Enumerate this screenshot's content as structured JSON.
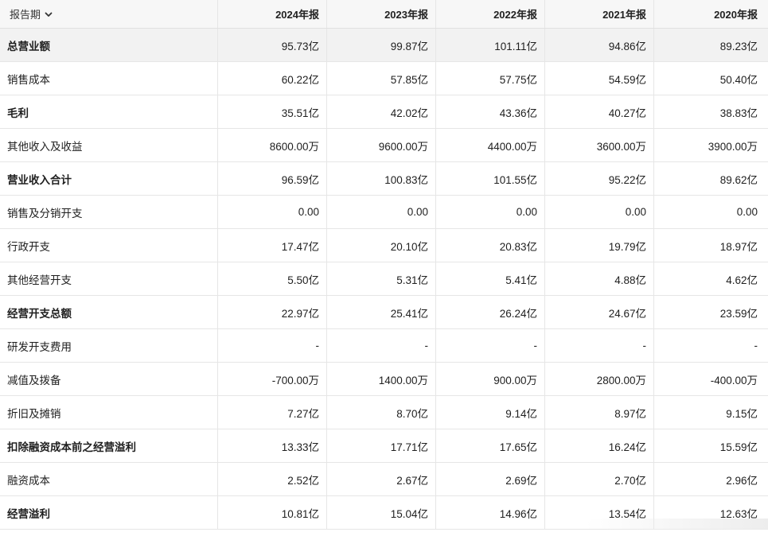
{
  "header": {
    "period_label": "报告期",
    "years": [
      "2024年报",
      "2023年报",
      "2022年报",
      "2021年报",
      "2020年报"
    ]
  },
  "rows": [
    {
      "label": "总营业额",
      "bold": true,
      "values": [
        "95.73亿",
        "99.87亿",
        "101.11亿",
        "94.86亿",
        "89.23亿"
      ]
    },
    {
      "label": "销售成本",
      "bold": false,
      "values": [
        "60.22亿",
        "57.85亿",
        "57.75亿",
        "54.59亿",
        "50.40亿"
      ]
    },
    {
      "label": "毛利",
      "bold": true,
      "values": [
        "35.51亿",
        "42.02亿",
        "43.36亿",
        "40.27亿",
        "38.83亿"
      ]
    },
    {
      "label": "其他收入及收益",
      "bold": false,
      "values": [
        "8600.00万",
        "9600.00万",
        "4400.00万",
        "3600.00万",
        "3900.00万"
      ]
    },
    {
      "label": "营业收入合计",
      "bold": true,
      "values": [
        "96.59亿",
        "100.83亿",
        "101.55亿",
        "95.22亿",
        "89.62亿"
      ]
    },
    {
      "label": "销售及分销开支",
      "bold": false,
      "values": [
        "0.00",
        "0.00",
        "0.00",
        "0.00",
        "0.00"
      ]
    },
    {
      "label": "行政开支",
      "bold": false,
      "values": [
        "17.47亿",
        "20.10亿",
        "20.83亿",
        "19.79亿",
        "18.97亿"
      ]
    },
    {
      "label": "其他经营开支",
      "bold": false,
      "values": [
        "5.50亿",
        "5.31亿",
        "5.41亿",
        "4.88亿",
        "4.62亿"
      ]
    },
    {
      "label": "经营开支总额",
      "bold": true,
      "values": [
        "22.97亿",
        "25.41亿",
        "26.24亿",
        "24.67亿",
        "23.59亿"
      ]
    },
    {
      "label": "研发开支费用",
      "bold": false,
      "values": [
        "-",
        "-",
        "-",
        "-",
        "-"
      ]
    },
    {
      "label": "减值及拨备",
      "bold": false,
      "values": [
        "-700.00万",
        "1400.00万",
        "900.00万",
        "2800.00万",
        "-400.00万"
      ]
    },
    {
      "label": "折旧及摊销",
      "bold": false,
      "values": [
        "7.27亿",
        "8.70亿",
        "9.14亿",
        "8.97亿",
        "9.15亿"
      ]
    },
    {
      "label": "扣除融资成本前之经营溢利",
      "bold": true,
      "values": [
        "13.33亿",
        "17.71亿",
        "17.65亿",
        "16.24亿",
        "15.59亿"
      ]
    },
    {
      "label": "融资成本",
      "bold": false,
      "values": [
        "2.52亿",
        "2.67亿",
        "2.69亿",
        "2.70亿",
        "2.96亿"
      ]
    },
    {
      "label": "经营溢利",
      "bold": true,
      "values": [
        "10.81亿",
        "15.04亿",
        "14.96亿",
        "13.54亿",
        "12.63亿"
      ]
    }
  ]
}
